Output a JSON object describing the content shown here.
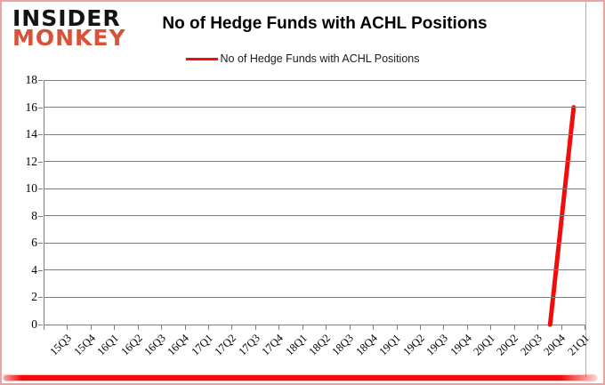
{
  "logo": {
    "line1": "INSIDER",
    "line2": "MONKEY"
  },
  "header": {
    "title": "No of Hedge Funds with ACHL Positions"
  },
  "legend": {
    "label": "No of Hedge Funds with ACHL Positions"
  },
  "colors": {
    "line": "#f20d0d",
    "logo_text": "#141414",
    "logo_accent": "#d85138",
    "grid": "#7f7f7f",
    "border_pink": "#eba4a4",
    "bottom_band": "#f20d0d"
  },
  "chart_data": {
    "type": "line",
    "title": "No of Hedge Funds with ACHL Positions",
    "xlabel": "",
    "ylabel": "",
    "categories": [
      "15Q3",
      "15Q4",
      "16Q1",
      "16Q2",
      "16Q3",
      "16Q4",
      "17Q1",
      "17Q2",
      "17Q3",
      "17Q4",
      "18Q1",
      "18Q2",
      "18Q3",
      "18Q4",
      "19Q1",
      "19Q2",
      "19Q3",
      "19Q4",
      "20Q1",
      "20Q2",
      "20Q3",
      "20Q4",
      "21Q1"
    ],
    "series": [
      {
        "name": "No of Hedge Funds with ACHL Positions",
        "color": "#f20d0d",
        "values": [
          null,
          null,
          null,
          null,
          null,
          null,
          null,
          null,
          null,
          null,
          null,
          null,
          null,
          null,
          null,
          null,
          null,
          null,
          null,
          null,
          null,
          0,
          16
        ]
      }
    ],
    "ylim": [
      0,
      18
    ],
    "yticks": [
      0,
      2,
      4,
      6,
      8,
      10,
      12,
      14,
      16,
      18
    ],
    "grid": true,
    "legend_position": "top"
  }
}
